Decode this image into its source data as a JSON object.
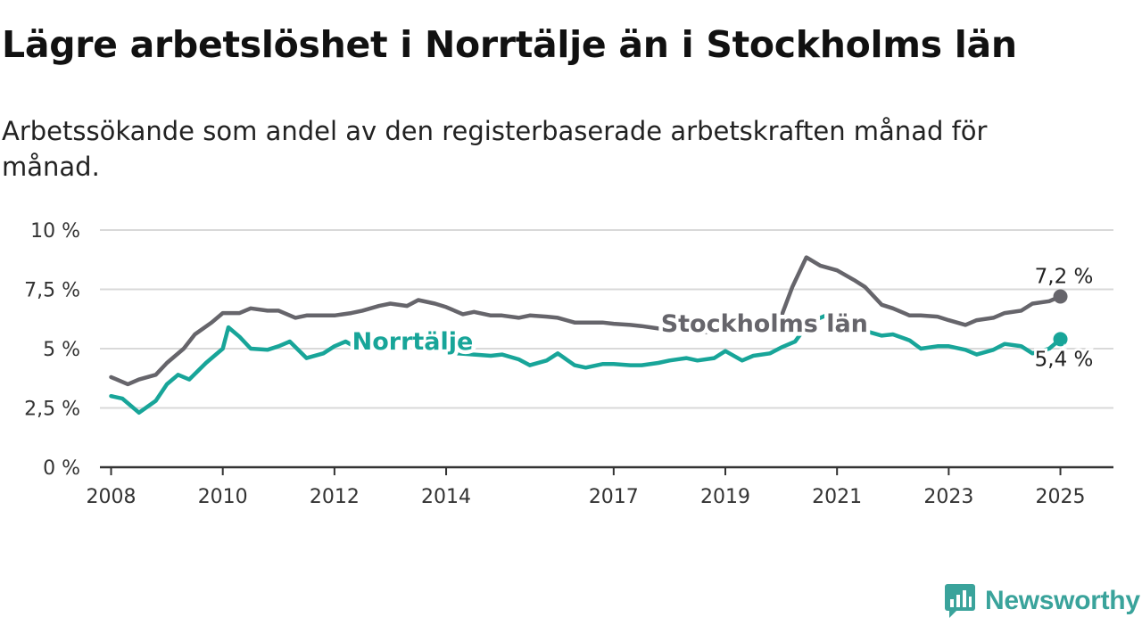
{
  "title": "Lägre arbetslöshet i Norrtälje än i Stockholms län",
  "subtitle": "Arbetssökande som andel av den registerbaserade arbetskraften månad för månad.",
  "brand": {
    "name": "Newsworthy",
    "icon": "newsworthy-logo-icon",
    "color": "#3aa39b"
  },
  "chart_data": {
    "type": "line",
    "ylim": [
      0,
      10
    ],
    "xlim": [
      2007.8,
      2025.95
    ],
    "y_ticks": [
      {
        "value": 0,
        "label": "0 %"
      },
      {
        "value": 2.5,
        "label": "2,5 %"
      },
      {
        "value": 5,
        "label": "5 %"
      },
      {
        "value": 7.5,
        "label": "7,5 %"
      },
      {
        "value": 10,
        "label": "10 %"
      }
    ],
    "x_ticks": [
      {
        "value": 2008.0,
        "label": "2008"
      },
      {
        "value": 2010.0,
        "label": "2010"
      },
      {
        "value": 2012.0,
        "label": "2012"
      },
      {
        "value": 2014.0,
        "label": "2014"
      },
      {
        "value": 2017.0,
        "label": "2017"
      },
      {
        "value": 2019.0,
        "label": "2019"
      },
      {
        "value": 2021.0,
        "label": "2021"
      },
      {
        "value": 2023.0,
        "label": "2023"
      },
      {
        "value": 2025.0,
        "label": "2025"
      }
    ],
    "grid": true,
    "series": [
      {
        "name": "Stockholms län",
        "color": "#66656b",
        "label_color": "#66656b",
        "label_at": 2019.7,
        "end_label": "7,2 %",
        "points": [
          [
            2008.0,
            3.8
          ],
          [
            2008.3,
            3.5
          ],
          [
            2008.5,
            3.7
          ],
          [
            2008.8,
            3.9
          ],
          [
            2009.0,
            4.4
          ],
          [
            2009.3,
            5.0
          ],
          [
            2009.5,
            5.6
          ],
          [
            2009.8,
            6.1
          ],
          [
            2010.0,
            6.5
          ],
          [
            2010.3,
            6.5
          ],
          [
            2010.5,
            6.7
          ],
          [
            2010.8,
            6.6
          ],
          [
            2011.0,
            6.6
          ],
          [
            2011.3,
            6.3
          ],
          [
            2011.5,
            6.4
          ],
          [
            2011.8,
            6.4
          ],
          [
            2012.0,
            6.4
          ],
          [
            2012.3,
            6.5
          ],
          [
            2012.5,
            6.6
          ],
          [
            2012.8,
            6.8
          ],
          [
            2013.0,
            6.9
          ],
          [
            2013.3,
            6.8
          ],
          [
            2013.5,
            7.05
          ],
          [
            2013.8,
            6.9
          ],
          [
            2014.0,
            6.75
          ],
          [
            2014.3,
            6.45
          ],
          [
            2014.5,
            6.55
          ],
          [
            2014.8,
            6.4
          ],
          [
            2015.0,
            6.4
          ],
          [
            2015.3,
            6.3
          ],
          [
            2015.5,
            6.4
          ],
          [
            2015.8,
            6.35
          ],
          [
            2016.0,
            6.3
          ],
          [
            2016.3,
            6.1
          ],
          [
            2016.5,
            6.1
          ],
          [
            2016.8,
            6.1
          ],
          [
            2017.0,
            6.05
          ],
          [
            2017.3,
            6.0
          ],
          [
            2017.5,
            5.95
          ],
          [
            2017.8,
            5.85
          ],
          [
            2018.0,
            5.8
          ],
          [
            2018.3,
            5.75
          ],
          [
            2018.5,
            5.7
          ],
          [
            2018.8,
            5.7
          ],
          [
            2019.0,
            5.75
          ],
          [
            2019.3,
            5.85
          ],
          [
            2019.5,
            5.95
          ],
          [
            2019.8,
            6.05
          ],
          [
            2020.0,
            6.35
          ],
          [
            2020.2,
            7.6
          ],
          [
            2020.45,
            8.85
          ],
          [
            2020.7,
            8.5
          ],
          [
            2021.0,
            8.3
          ],
          [
            2021.3,
            7.9
          ],
          [
            2021.5,
            7.6
          ],
          [
            2021.8,
            6.85
          ],
          [
            2022.0,
            6.7
          ],
          [
            2022.3,
            6.4
          ],
          [
            2022.5,
            6.4
          ],
          [
            2022.8,
            6.35
          ],
          [
            2023.0,
            6.2
          ],
          [
            2023.3,
            6.0
          ],
          [
            2023.5,
            6.2
          ],
          [
            2023.8,
            6.3
          ],
          [
            2024.0,
            6.5
          ],
          [
            2024.3,
            6.6
          ],
          [
            2024.5,
            6.9
          ],
          [
            2024.8,
            7.0
          ],
          [
            2025.0,
            7.2
          ]
        ]
      },
      {
        "name": "Norrtälje",
        "color": "#18a599",
        "label_color": "#18a599",
        "label_at": 2013.4,
        "end_label": "5,4 %",
        "points": [
          [
            2008.0,
            3.0
          ],
          [
            2008.2,
            2.9
          ],
          [
            2008.5,
            2.3
          ],
          [
            2008.8,
            2.8
          ],
          [
            2009.0,
            3.5
          ],
          [
            2009.2,
            3.9
          ],
          [
            2009.4,
            3.7
          ],
          [
            2009.7,
            4.4
          ],
          [
            2010.0,
            5.0
          ],
          [
            2010.1,
            5.9
          ],
          [
            2010.3,
            5.5
          ],
          [
            2010.5,
            5.0
          ],
          [
            2010.8,
            4.95
          ],
          [
            2011.0,
            5.1
          ],
          [
            2011.2,
            5.3
          ],
          [
            2011.5,
            4.6
          ],
          [
            2011.8,
            4.8
          ],
          [
            2012.0,
            5.1
          ],
          [
            2012.2,
            5.3
          ],
          [
            2012.5,
            4.9
          ],
          [
            2012.8,
            5.2
          ],
          [
            2013.0,
            5.3
          ],
          [
            2013.3,
            5.3
          ],
          [
            2013.6,
            5.1
          ],
          [
            2013.9,
            5.0
          ],
          [
            2014.2,
            4.8
          ],
          [
            2014.5,
            4.75
          ],
          [
            2014.8,
            4.7
          ],
          [
            2015.0,
            4.75
          ],
          [
            2015.3,
            4.55
          ],
          [
            2015.5,
            4.3
          ],
          [
            2015.8,
            4.5
          ],
          [
            2016.0,
            4.8
          ],
          [
            2016.3,
            4.3
          ],
          [
            2016.5,
            4.2
          ],
          [
            2016.8,
            4.35
          ],
          [
            2017.0,
            4.35
          ],
          [
            2017.3,
            4.3
          ],
          [
            2017.5,
            4.3
          ],
          [
            2017.8,
            4.4
          ],
          [
            2018.0,
            4.5
          ],
          [
            2018.3,
            4.6
          ],
          [
            2018.5,
            4.5
          ],
          [
            2018.8,
            4.6
          ],
          [
            2019.0,
            4.9
          ],
          [
            2019.3,
            4.5
          ],
          [
            2019.5,
            4.7
          ],
          [
            2019.8,
            4.8
          ],
          [
            2020.0,
            5.05
          ],
          [
            2020.25,
            5.3
          ],
          [
            2020.5,
            6.1
          ],
          [
            2020.8,
            6.4
          ],
          [
            2021.0,
            6.4
          ],
          [
            2021.3,
            5.95
          ],
          [
            2021.5,
            5.75
          ],
          [
            2021.8,
            5.55
          ],
          [
            2022.0,
            5.6
          ],
          [
            2022.3,
            5.35
          ],
          [
            2022.5,
            5.0
          ],
          [
            2022.8,
            5.1
          ],
          [
            2023.0,
            5.1
          ],
          [
            2023.3,
            4.95
          ],
          [
            2023.5,
            4.75
          ],
          [
            2023.8,
            4.95
          ],
          [
            2024.0,
            5.2
          ],
          [
            2024.3,
            5.1
          ],
          [
            2024.5,
            4.8
          ],
          [
            2024.8,
            5.0
          ],
          [
            2025.0,
            5.4
          ]
        ]
      }
    ]
  }
}
